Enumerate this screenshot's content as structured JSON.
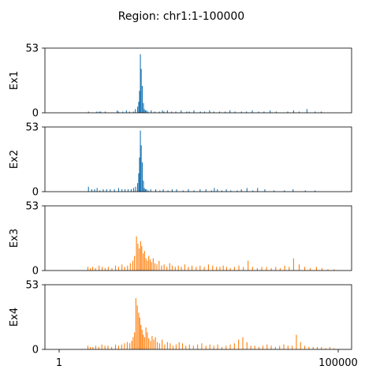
{
  "chart_data": {
    "type": "bar",
    "title": "Region: chr1:1-100000",
    "x_range": [
      1,
      100000
    ],
    "x_ticks": [
      "1",
      "100000"
    ],
    "y_range": [
      0,
      53
    ],
    "y_ticks": [
      "0",
      "53"
    ],
    "grid": false,
    "tracks": [
      {
        "label": "Ex1",
        "color": "#1f77b4",
        "x": [
          10500,
          13500,
          14400,
          14900,
          16500,
          20800,
          21300,
          22800,
          24100,
          25200,
          26600,
          27300,
          28100,
          28500,
          28800,
          29100,
          29400,
          29800,
          30200,
          30500,
          30900,
          31300,
          31800,
          33000,
          34300,
          35900,
          37000,
          37600,
          38800,
          40300,
          41800,
          43700,
          45700,
          46600,
          48300,
          50600,
          52100,
          53900,
          55400,
          57500,
          59500,
          61200,
          63000,
          65300,
          67100,
          69200,
          71400,
          73400,
          75600,
          77800,
          81900,
          84000,
          86000,
          88800,
          91700,
          93900
        ],
        "values": [
          1,
          1,
          1,
          1,
          1,
          2,
          1,
          1,
          2,
          1,
          1,
          3,
          5,
          9,
          18,
          48,
          36,
          22,
          8,
          3,
          2,
          2,
          1,
          2,
          1,
          1,
          2,
          1,
          2,
          1,
          1,
          2,
          1,
          1,
          2,
          1,
          1,
          2,
          1,
          1,
          1,
          2,
          1,
          1,
          1,
          2,
          1,
          1,
          2,
          1,
          1,
          2,
          1,
          3,
          1,
          1
        ]
      },
      {
        "label": "Ex2",
        "color": "#1f77b4",
        "x": [
          10500,
          11700,
          12700,
          13600,
          14600,
          15800,
          17000,
          18300,
          19800,
          21300,
          22500,
          23600,
          24700,
          25800,
          26700,
          27400,
          28100,
          28500,
          28800,
          29100,
          29400,
          29800,
          30200,
          30500,
          30900,
          31300,
          31900,
          32800,
          34600,
          36100,
          37300,
          39000,
          40500,
          42100,
          44400,
          46300,
          48300,
          50500,
          52600,
          54600,
          55600,
          56700,
          58300,
          59900,
          61500,
          63800,
          65300,
          67300,
          69400,
          71100,
          73700,
          77000,
          80700,
          83800,
          88200,
          91700
        ],
        "values": [
          4,
          2,
          2,
          3,
          1,
          2,
          2,
          2,
          2,
          3,
          2,
          2,
          2,
          2,
          3,
          4,
          7,
          15,
          28,
          50,
          38,
          24,
          9,
          3,
          2,
          2,
          1,
          2,
          2,
          1,
          2,
          1,
          2,
          2,
          1,
          2,
          1,
          2,
          2,
          1,
          3,
          2,
          1,
          2,
          1,
          1,
          2,
          3,
          1,
          3,
          2,
          1,
          1,
          2,
          1,
          1
        ]
      },
      {
        "label": "Ex3",
        "color": "#ff7f0e",
        "x": [
          10300,
          11200,
          12000,
          13000,
          14300,
          15400,
          16500,
          17600,
          18900,
          20200,
          21300,
          22500,
          23500,
          24500,
          25500,
          26400,
          27000,
          27700,
          28200,
          28700,
          29200,
          29600,
          30100,
          30600,
          31100,
          31600,
          32100,
          32600,
          33100,
          33700,
          34300,
          35000,
          35800,
          36700,
          37600,
          38600,
          39600,
          40500,
          41600,
          42700,
          43800,
          45000,
          46300,
          47600,
          49100,
          50500,
          52000,
          53500,
          55000,
          56400,
          57600,
          58800,
          60000,
          61300,
          62800,
          64400,
          66000,
          67700,
          69300,
          71000,
          72600,
          74300,
          76000,
          77600,
          79200,
          80800,
          82400,
          84000,
          86000,
          88000,
          90000,
          92200,
          94200,
          96300,
          98500
        ],
        "values": [
          3,
          2,
          3,
          2,
          4,
          3,
          2,
          3,
          2,
          4,
          3,
          5,
          3,
          4,
          6,
          8,
          12,
          28,
          22,
          18,
          24,
          20,
          14,
          16,
          10,
          8,
          12,
          9,
          7,
          10,
          6,
          5,
          8,
          4,
          5,
          3,
          6,
          4,
          3,
          4,
          3,
          5,
          3,
          4,
          3,
          4,
          3,
          5,
          4,
          3,
          3,
          4,
          3,
          2,
          3,
          4,
          3,
          8,
          3,
          2,
          3,
          3,
          2,
          3,
          2,
          4,
          3,
          10,
          5,
          3,
          2,
          3,
          2,
          1,
          1
        ]
      },
      {
        "label": "Ex4",
        "color": "#ff7f0e",
        "x": [
          10300,
          11200,
          12100,
          13100,
          14200,
          15300,
          16400,
          17500,
          18800,
          20200,
          21300,
          22400,
          23400,
          24400,
          25300,
          26000,
          26500,
          27000,
          27500,
          28000,
          28500,
          28900,
          29300,
          29700,
          30100,
          30600,
          31100,
          31600,
          32100,
          32700,
          33300,
          33900,
          34500,
          35200,
          36000,
          36900,
          37800,
          38800,
          39800,
          40800,
          41900,
          43000,
          44200,
          45400,
          46700,
          48100,
          49600,
          51100,
          52600,
          54000,
          55400,
          56800,
          58300,
          59800,
          61300,
          62800,
          64300,
          65800,
          67300,
          68700,
          70100,
          71600,
          73000,
          74500,
          76000,
          77500,
          79000,
          80500,
          82000,
          83500,
          85000,
          86500,
          88000,
          89500,
          91000,
          92500,
          94000,
          95500,
          97000,
          98500
        ],
        "values": [
          3,
          2,
          2,
          3,
          2,
          4,
          3,
          3,
          2,
          4,
          3,
          4,
          5,
          6,
          5,
          7,
          10,
          14,
          42,
          36,
          30,
          26,
          20,
          16,
          12,
          10,
          18,
          14,
          9,
          7,
          11,
          8,
          10,
          6,
          5,
          8,
          4,
          6,
          5,
          3,
          4,
          6,
          5,
          3,
          4,
          3,
          4,
          5,
          3,
          4,
          3,
          4,
          2,
          3,
          4,
          5,
          8,
          10,
          6,
          3,
          3,
          2,
          3,
          4,
          3,
          2,
          3,
          4,
          3,
          3,
          12,
          6,
          3,
          2,
          2,
          2,
          2,
          1,
          2,
          1
        ]
      }
    ]
  }
}
